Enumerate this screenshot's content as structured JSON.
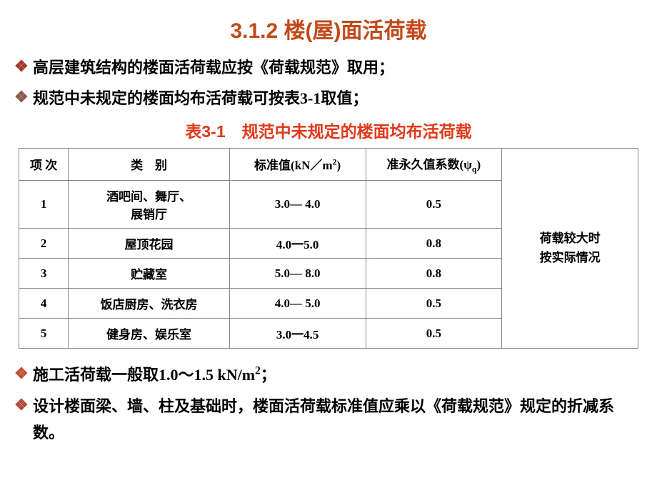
{
  "title_text": "3.1.2 楼(屋)面活荷载",
  "title_color": "#c24a1a",
  "title_fontsize": 30,
  "bullets_top": [
    "高层建筑结构的楼面活荷载应按《荷载规范》取用；",
    "规范中未规定的楼面均布活荷载可按表3-1取值；"
  ],
  "bullets_bottom": [
    "施工活荷载一般取1.0～1.5 kN/m²；",
    "设计楼面梁、墙、柱及基础时，楼面活荷载标准值应乘以《荷载规范》规定的折减系数。"
  ],
  "bullet_fontsize": 22,
  "bullet_marker_colors": [
    "#a03a2a",
    "#8b5a4a",
    "#c05038",
    "#b04a38"
  ],
  "caption_text": "表3-1　规范中未规定的楼面均布活荷载",
  "caption_color": "#e03a1a",
  "caption_fontsize": 23,
  "table": {
    "columns": [
      "项 次",
      "类　别",
      "标准值(kN／m²)",
      "准永久值系数(ψq)"
    ],
    "col_widths_pct": [
      8,
      26,
      22,
      22,
      22
    ],
    "header_fontsize": 17,
    "cell_fontsize": 17,
    "border_color": "#888888",
    "rows": [
      {
        "n": "1",
        "cat": "酒吧间、舞厅、\n展销厅",
        "std": "3.0— 4.0",
        "psi": "0.5"
      },
      {
        "n": "2",
        "cat": "屋顶花园",
        "std": "4.0一5.0",
        "psi": "0.8"
      },
      {
        "n": "3",
        "cat": "贮藏室",
        "std": "5.0— 8.0",
        "psi": "0.8"
      },
      {
        "n": "4",
        "cat": "饭店厨房、洗衣房",
        "std": "4.0— 5.0",
        "psi": "0.5"
      },
      {
        "n": "5",
        "cat": "健身房、娱乐室",
        "std": "3.0一4.5",
        "psi": "0.5"
      }
    ],
    "side_note": "荷载较大时\n按实际情况"
  },
  "background_color": "#ffffff"
}
